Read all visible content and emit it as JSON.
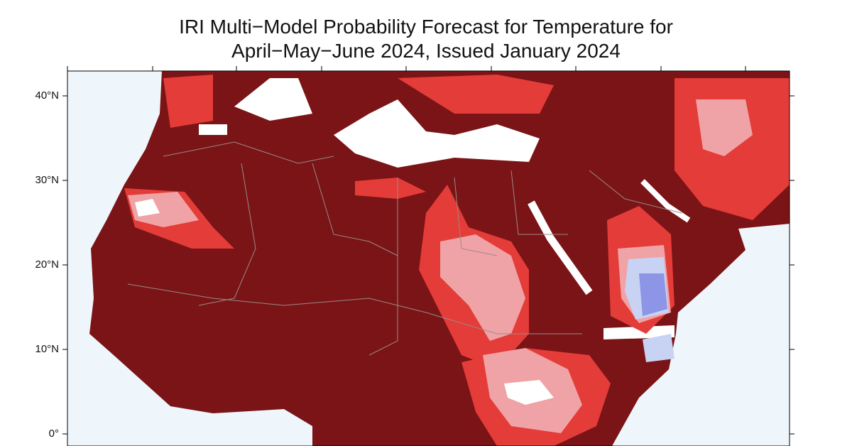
{
  "map": {
    "title": [
      "IRI Multi−Model Probability Forecast for Temperature for",
      "April−May−June 2024, Issued January 2024"
    ],
    "lat_ticks": [
      {
        "value": 40,
        "label": "40°N"
      },
      {
        "value": 30,
        "label": "30°N"
      },
      {
        "value": 20,
        "label": "20°N"
      },
      {
        "value": 10,
        "label": "10°N"
      },
      {
        "value": 0,
        "label": "0°"
      }
    ]
  }
}
